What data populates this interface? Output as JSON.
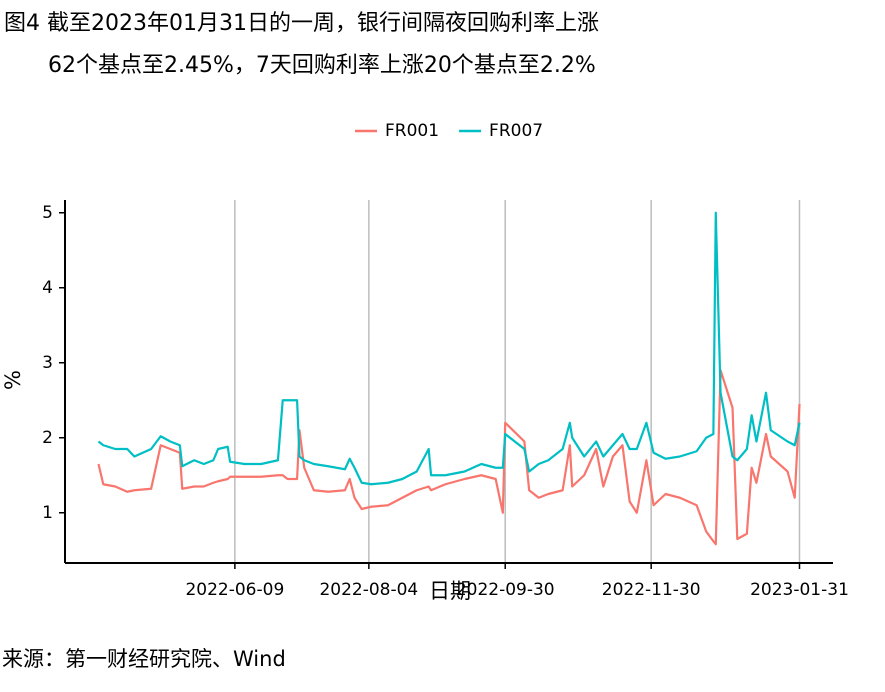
{
  "chart_data": {
    "type": "line",
    "title": [
      "图4  截至2023年01月31日的一周，银行间隔夜回购利率上涨",
      "62个基点至2.45%，7天回购利率上涨20个基点至2.2%"
    ],
    "x_label": "日期",
    "y_label": "%",
    "source": "来源：第一财经研究院、Wind",
    "x": [
      "2022-04-13",
      "2022-04-15",
      "2022-04-20",
      "2022-04-25",
      "2022-04-28",
      "2022-05-05",
      "2022-05-09",
      "2022-05-13",
      "2022-05-17",
      "2022-05-18",
      "2022-05-23",
      "2022-05-27",
      "2022-05-31",
      "2022-06-02",
      "2022-06-06",
      "2022-06-07",
      "2022-06-13",
      "2022-06-20",
      "2022-06-27",
      "2022-06-29",
      "2022-07-01",
      "2022-07-05",
      "2022-07-06",
      "2022-07-08",
      "2022-07-12",
      "2022-07-18",
      "2022-07-25",
      "2022-07-27",
      "2022-07-29",
      "2022-08-01",
      "2022-08-05",
      "2022-08-12",
      "2022-08-18",
      "2022-08-24",
      "2022-08-29",
      "2022-08-30",
      "2022-09-05",
      "2022-09-13",
      "2022-09-20",
      "2022-09-26",
      "2022-09-29",
      "2022-09-30",
      "2022-10-08",
      "2022-10-10",
      "2022-10-14",
      "2022-10-18",
      "2022-10-24",
      "2022-10-27",
      "2022-10-28",
      "2022-11-02",
      "2022-11-07",
      "2022-11-10",
      "2022-11-14",
      "2022-11-18",
      "2022-11-21",
      "2022-11-24",
      "2022-11-28",
      "2022-12-01",
      "2022-12-06",
      "2022-12-12",
      "2022-12-19",
      "2022-12-23",
      "2022-12-26",
      "2022-12-27",
      "2022-12-29",
      "2023-01-03",
      "2023-01-05",
      "2023-01-09",
      "2023-01-11",
      "2023-01-13",
      "2023-01-17",
      "2023-01-19",
      "2023-01-26",
      "2023-01-29",
      "2023-01-31"
    ],
    "series": [
      {
        "name": "FR001",
        "color": "#F8766D",
        "values": [
          1.65,
          1.38,
          1.35,
          1.28,
          1.3,
          1.32,
          1.9,
          1.85,
          1.8,
          1.32,
          1.35,
          1.35,
          1.4,
          1.42,
          1.45,
          1.48,
          1.48,
          1.48,
          1.5,
          1.5,
          1.45,
          1.45,
          2.1,
          1.6,
          1.3,
          1.28,
          1.3,
          1.45,
          1.2,
          1.05,
          1.08,
          1.1,
          1.2,
          1.3,
          1.35,
          1.3,
          1.38,
          1.45,
          1.5,
          1.45,
          1.0,
          2.2,
          1.95,
          1.3,
          1.2,
          1.25,
          1.3,
          1.9,
          1.35,
          1.5,
          1.85,
          1.35,
          1.75,
          1.9,
          1.15,
          1.0,
          1.7,
          1.1,
          1.25,
          1.2,
          1.1,
          0.75,
          0.62,
          0.58,
          2.9,
          2.4,
          0.65,
          0.72,
          1.6,
          1.4,
          2.05,
          1.75,
          1.55,
          1.2,
          2.45
        ]
      },
      {
        "name": "FR007",
        "color": "#00BFC4",
        "values": [
          1.95,
          1.9,
          1.85,
          1.85,
          1.75,
          1.85,
          2.02,
          1.95,
          1.9,
          1.62,
          1.7,
          1.65,
          1.7,
          1.85,
          1.88,
          1.68,
          1.65,
          1.65,
          1.7,
          2.5,
          2.5,
          2.5,
          1.75,
          1.7,
          1.65,
          1.62,
          1.58,
          1.72,
          1.6,
          1.4,
          1.38,
          1.4,
          1.45,
          1.55,
          1.85,
          1.5,
          1.5,
          1.55,
          1.65,
          1.6,
          1.6,
          2.05,
          1.85,
          1.55,
          1.65,
          1.7,
          1.85,
          2.2,
          2.0,
          1.75,
          1.95,
          1.75,
          1.9,
          2.05,
          1.85,
          1.85,
          2.2,
          1.8,
          1.72,
          1.75,
          1.82,
          2.0,
          2.05,
          5.0,
          2.6,
          1.75,
          1.7,
          1.85,
          2.3,
          1.95,
          2.6,
          2.1,
          1.95,
          1.9,
          2.2
        ]
      }
    ],
    "xlim": [
      "2022-03-30",
      "2023-02-14"
    ],
    "xticks": [
      "2022-06-09",
      "2022-08-04",
      "2022-09-30",
      "2022-11-30",
      "2023-01-31"
    ],
    "ylim": [
      0.33,
      5.17
    ],
    "yticks": [
      1,
      2,
      3,
      4,
      5
    ],
    "grid": "x",
    "legend": "top"
  }
}
